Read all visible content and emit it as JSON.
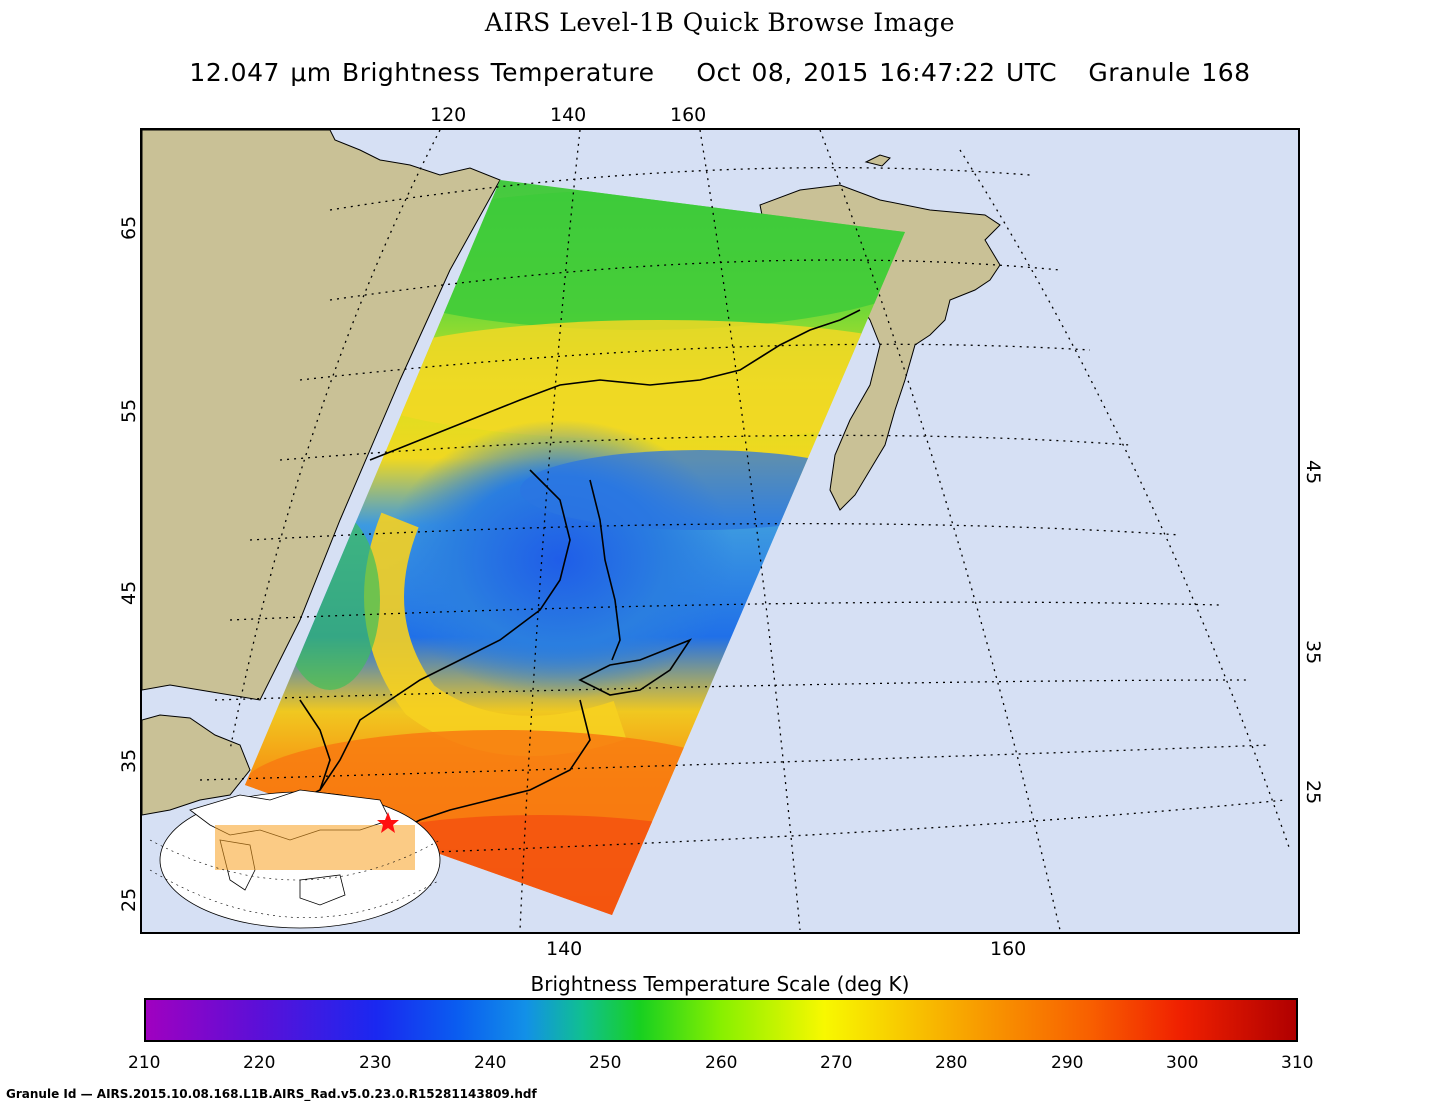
{
  "header": {
    "title": "AIRS Level-1B Quick Browse Image",
    "subtitle_parts": [
      "12.047 μm Brightness Temperature",
      "Oct 08, 2015 16:47:22 UTC",
      "Granule 168"
    ]
  },
  "axes": {
    "top_lon_ticks": [
      "120",
      "140",
      "160"
    ],
    "bottom_lon_ticks": [
      "140",
      "160"
    ],
    "left_lat_ticks": [
      "65",
      "55",
      "45",
      "35",
      "25"
    ],
    "right_lat_ticks": [
      "45",
      "35",
      "25"
    ]
  },
  "colors": {
    "ocean": "#d6e0f4",
    "land": "#c9c196",
    "graticule": "#000000"
  },
  "colorbar": {
    "title": "Brightness Temperature Scale (deg K)",
    "ticks": [
      "210",
      "220",
      "230",
      "240",
      "250",
      "260",
      "270",
      "280",
      "290",
      "300",
      "310"
    ]
  },
  "footer": {
    "granule_id": "Granule Id — AIRS.2015.10.08.168.L1B.AIRS_Rad.v5.0.23.0.R15281143809.hdf"
  }
}
